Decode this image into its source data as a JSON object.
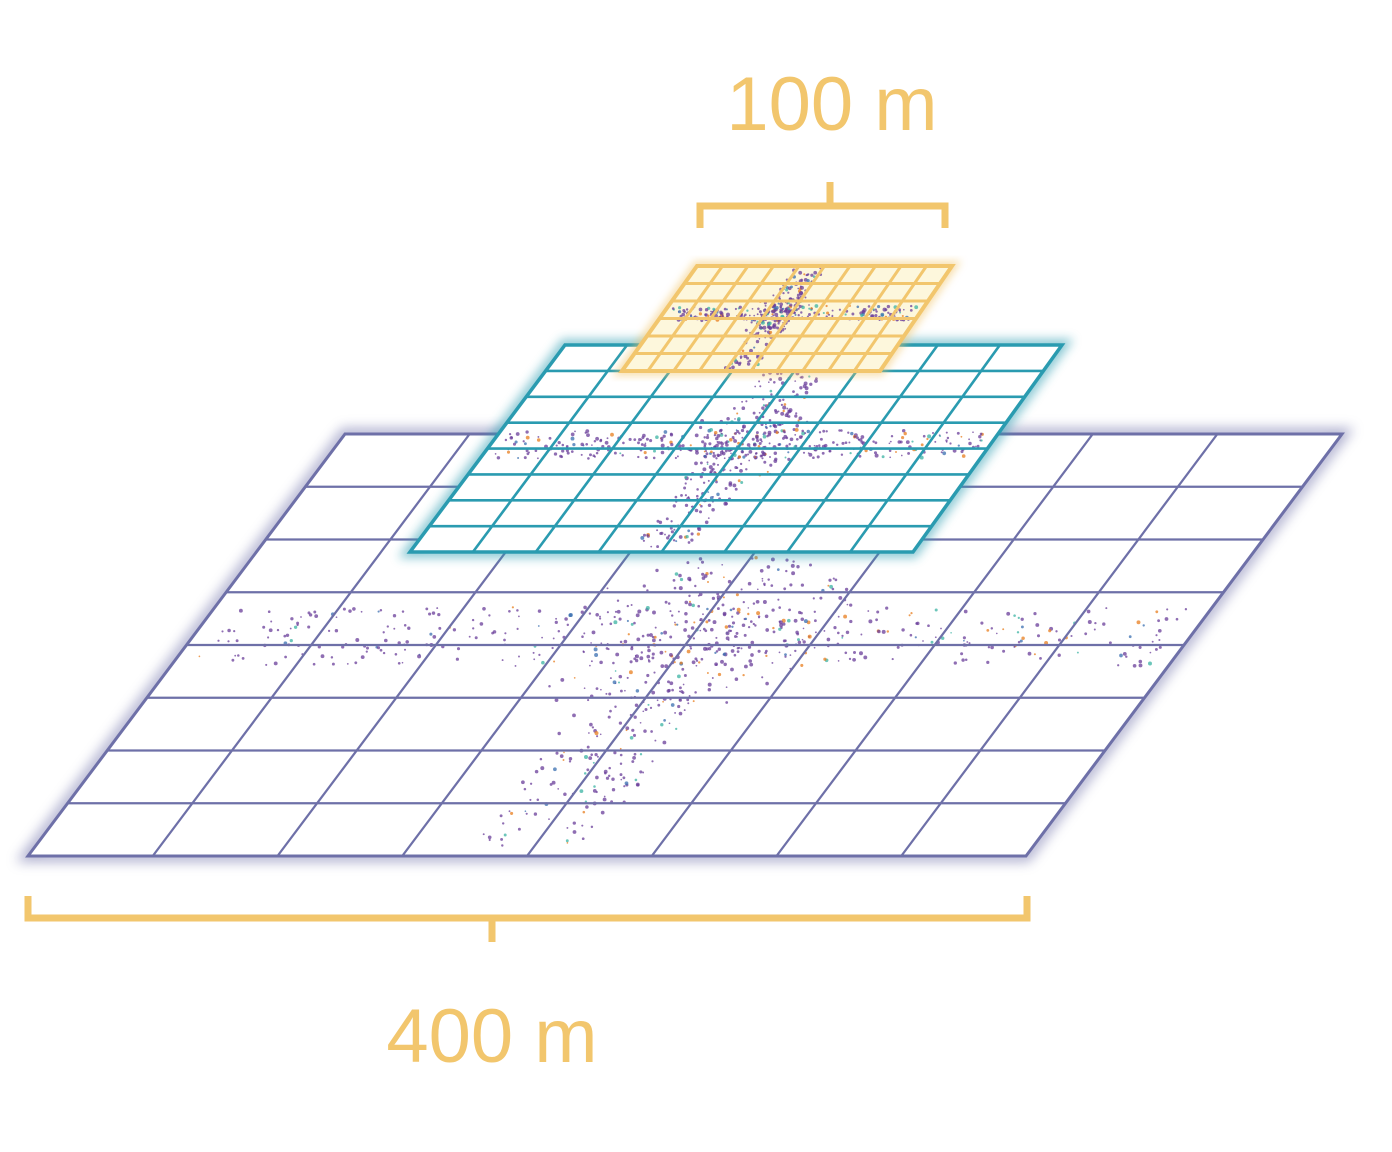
{
  "labels": {
    "top_scale": "100 m",
    "bottom_scale": "400 m"
  },
  "colors": {
    "accent": "#f2c66d",
    "large_grid": "#6e70a8",
    "mid_grid": "#2a9bb0",
    "small_grid": "#f2c66d",
    "small_fill": "#fdf7dc",
    "points_purple": "#6a3d9a",
    "points_orange": "#e87d1e",
    "points_teal": "#3bb3a3",
    "points_blue": "#3a6fb0"
  },
  "grids": {
    "large": {
      "cols": 8,
      "rows": 8
    },
    "mid": {
      "cols": 8,
      "rows": 8
    },
    "small": {
      "cols": 10,
      "rows": 6
    }
  }
}
